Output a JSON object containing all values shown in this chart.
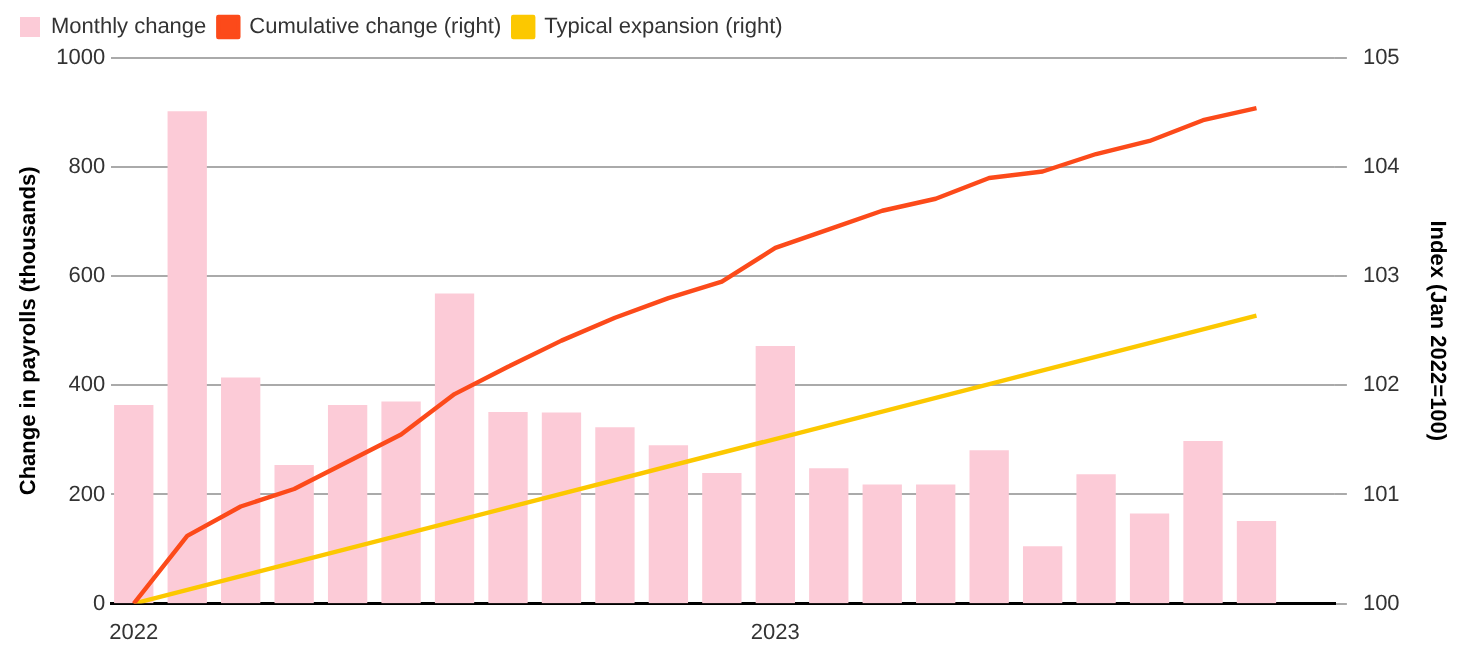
{
  "chart_data": {
    "type": "bar",
    "ylabel": "Change in payrolls (thousands)",
    "y2label": "Index (Jan 2022=100)",
    "x": [
      "2022-01",
      "2022-02",
      "2022-03",
      "2022-04",
      "2022-05",
      "2022-06",
      "2022-07",
      "2022-08",
      "2022-09",
      "2022-10",
      "2022-11",
      "2022-12",
      "2023-01",
      "2023-02",
      "2023-03",
      "2023-04",
      "2023-05",
      "2023-06",
      "2023-07",
      "2023-08",
      "2023-09",
      "2023-10"
    ],
    "xlim": [
      "2021-12-19",
      "2023-11-15"
    ],
    "xticks": [
      {
        "value": "2022-01",
        "label": "2022"
      },
      {
        "value": "2023-01",
        "label": "2023"
      }
    ],
    "series": [
      {
        "name": "Monthly change",
        "color": "#fccbd7",
        "values": [
          363,
          901,
          413,
          253,
          363,
          369,
          567,
          350,
          349,
          322,
          289,
          238,
          471,
          247,
          217,
          217,
          280,
          104,
          236,
          164,
          297,
          150
        ]
      },
      {
        "name": "Cumulative change (right)",
        "type": "line",
        "axis": "y2",
        "color": "#fc4a1a",
        "values": [
          100,
          100.62,
          100.89,
          101.05,
          101.3,
          101.55,
          101.92,
          102.17,
          102.41,
          102.62,
          102.8,
          102.95,
          103.26,
          103.43,
          103.6,
          103.71,
          103.9,
          103.96,
          104.12,
          104.24,
          104.43,
          104.54
        ]
      },
      {
        "name": "Typical expansion (right)",
        "type": "line",
        "axis": "y2",
        "color": "#fcc800",
        "x": [
          "2022-01",
          "2023-10"
        ],
        "values": [
          100,
          102.64
        ]
      }
    ],
    "ylim": [
      0,
      1000
    ],
    "yticks": [
      0,
      200,
      400,
      600,
      800,
      1000
    ],
    "y2lim": [
      100,
      105
    ],
    "y2ticks": [
      100,
      101,
      102,
      103,
      104,
      105
    ],
    "grid": "y",
    "legend": "top left",
    "marker": "none",
    "line_style": "solid"
  }
}
